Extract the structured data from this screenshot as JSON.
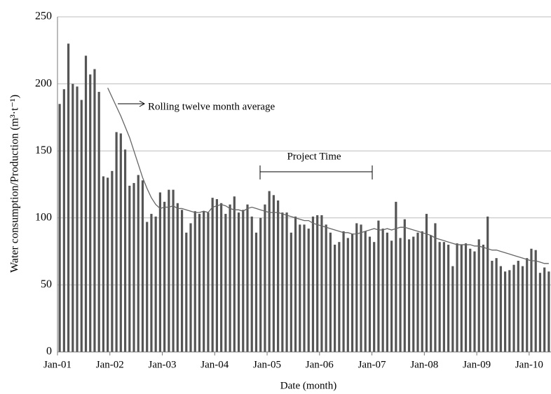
{
  "chart_data": {
    "type": "bar",
    "ylabel": "Water consumption/Production (m³·t⁻¹)",
    "xlabel": "Date (month)",
    "annotations": [
      "Rolling twelve month average",
      "Project Time"
    ],
    "categories": [
      "Jan-01",
      null,
      null,
      null,
      null,
      null,
      null,
      null,
      null,
      null,
      null,
      null,
      "Jan-02",
      null,
      null,
      null,
      null,
      null,
      null,
      null,
      null,
      null,
      null,
      null,
      "Jan-03",
      null,
      null,
      null,
      null,
      null,
      null,
      null,
      null,
      null,
      null,
      null,
      "Jan-04",
      null,
      null,
      null,
      null,
      null,
      null,
      null,
      null,
      null,
      null,
      null,
      "Jan-05",
      null,
      null,
      null,
      null,
      null,
      null,
      null,
      null,
      null,
      null,
      null,
      "Jan-06",
      null,
      null,
      null,
      null,
      null,
      null,
      null,
      null,
      null,
      null,
      null,
      "Jan-07",
      null,
      null,
      null,
      null,
      null,
      null,
      null,
      null,
      null,
      null,
      null,
      "Jan-08",
      null,
      null,
      null,
      null,
      null,
      null,
      null,
      null,
      null,
      null,
      null,
      "Jan-09",
      null,
      null,
      null,
      null,
      null,
      null,
      null,
      null,
      null,
      null,
      null,
      "Jan-10",
      null,
      null,
      null,
      null
    ],
    "series": [
      {
        "type": "bar",
        "color": "#555555",
        "values": [
          185,
          196,
          230,
          200,
          198,
          188,
          221,
          207,
          211,
          194,
          131,
          130,
          135,
          164,
          163,
          151,
          124,
          126,
          132,
          128,
          97,
          103,
          101,
          119,
          112,
          121,
          121,
          111,
          106,
          89,
          96,
          105,
          103,
          105,
          104,
          115,
          114,
          111,
          103,
          110,
          116,
          104,
          106,
          110,
          101,
          89,
          100,
          110,
          120,
          117,
          113,
          104,
          104,
          89,
          101,
          95,
          95,
          92,
          101,
          102,
          102,
          95,
          89,
          80,
          82,
          90,
          85,
          88,
          96,
          95,
          90,
          86,
          82,
          98,
          92,
          89,
          83,
          112,
          85,
          99,
          84,
          86,
          89,
          90,
          103,
          87,
          96,
          82,
          82,
          80,
          64,
          81,
          80,
          81,
          77,
          75,
          84,
          80,
          101,
          68,
          70,
          64,
          60,
          61,
          65,
          68,
          64,
          70,
          77,
          76,
          59,
          63,
          60
        ]
      },
      {
        "type": "line",
        "color": "#666666",
        "values": [
          null,
          null,
          null,
          null,
          null,
          null,
          null,
          null,
          null,
          null,
          null,
          197,
          190,
          183,
          176,
          168,
          160,
          150,
          140,
          130,
          122,
          115,
          110,
          107,
          108,
          108,
          109,
          107,
          107,
          106,
          105,
          104,
          104,
          105,
          104,
          108,
          109,
          110,
          109,
          107,
          106,
          106,
          105,
          107,
          108,
          107,
          106,
          105,
          104,
          104,
          104,
          103,
          102,
          101,
          100,
          99,
          98,
          98,
          96,
          95,
          94,
          93,
          92,
          91,
          90,
          89,
          89,
          88,
          88,
          89,
          90,
          91,
          92,
          91,
          91,
          92,
          91,
          92,
          93,
          93,
          92,
          91,
          90,
          89,
          88,
          87,
          85,
          84,
          83,
          82,
          81,
          80,
          80,
          80,
          80,
          79,
          79,
          78,
          77,
          76,
          76,
          75,
          74,
          73,
          72,
          71,
          70,
          69,
          68,
          68,
          67,
          66,
          66
        ]
      }
    ],
    "ylim": [
      0,
      250
    ],
    "yticks": [
      0,
      50,
      100,
      150,
      200,
      250
    ],
    "grid": true
  }
}
